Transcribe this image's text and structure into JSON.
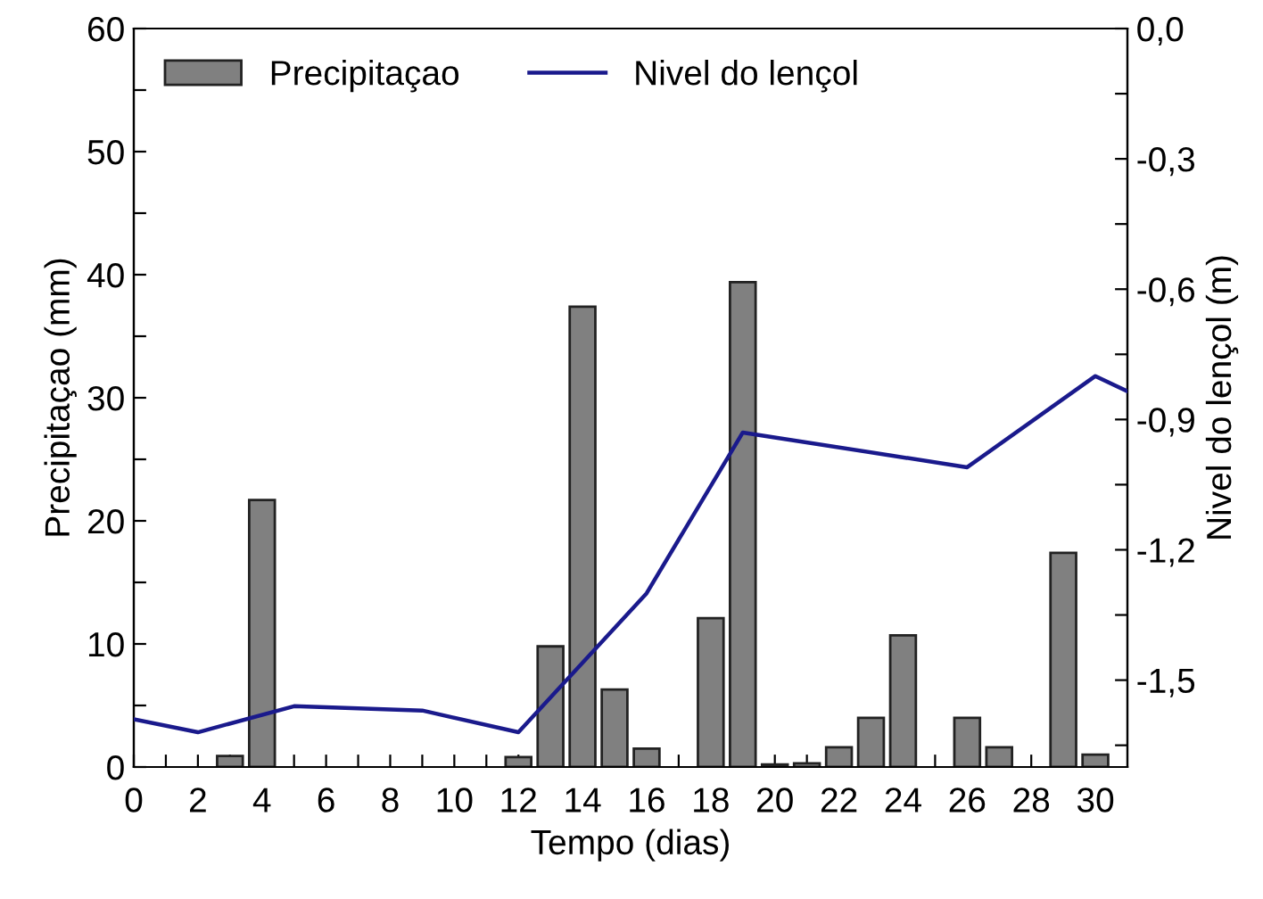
{
  "chart_data": {
    "type": "bar",
    "xlabel": "Tempo (dias)",
    "ylabel": "Precipitaçao (mm)",
    "y2label": "Nivel do lençol (m)",
    "xlim": [
      0,
      31
    ],
    "ylim": [
      0,
      60
    ],
    "y2lim": [
      -1.7,
      0
    ],
    "xticks": [
      0,
      {
        "value": 1,
        "label": null
      },
      2,
      {
        "value": 3,
        "label": null
      },
      4,
      {
        "value": 5,
        "label": null
      },
      6,
      {
        "value": 7,
        "label": null
      },
      8,
      {
        "value": 9,
        "label": null
      },
      10,
      {
        "value": 11,
        "label": null
      },
      12,
      {
        "value": 13,
        "label": null
      },
      14,
      {
        "value": 15,
        "label": null
      },
      16,
      {
        "value": 17,
        "label": null
      },
      18,
      {
        "value": 19,
        "label": null
      },
      20,
      {
        "value": 21,
        "label": null
      },
      22,
      {
        "value": 23,
        "label": null
      },
      24,
      {
        "value": 25,
        "label": null
      },
      26,
      {
        "value": 27,
        "label": null
      },
      28,
      {
        "value": 29,
        "label": null
      },
      30
    ],
    "yticks": [
      0,
      {
        "value": 5,
        "label": null
      },
      10,
      {
        "value": 15,
        "label": null
      },
      20,
      {
        "value": 25,
        "label": null
      },
      30,
      {
        "value": 35,
        "label": null
      },
      40,
      {
        "value": 45,
        "label": null
      },
      50,
      {
        "value": 55,
        "label": null
      },
      60
    ],
    "y2ticks": [
      {
        "value": 0,
        "label": "0,0"
      },
      {
        "value": -0.15,
        "label": null
      },
      {
        "value": -0.3,
        "label": "-0,3"
      },
      {
        "value": -0.45,
        "label": null
      },
      {
        "value": -0.6,
        "label": "-0,6"
      },
      {
        "value": -0.75,
        "label": null
      },
      {
        "value": -0.9,
        "label": "-0,9"
      },
      {
        "value": -1.05,
        "label": null
      },
      {
        "value": -1.2,
        "label": "-1,2"
      },
      {
        "value": -1.35,
        "label": null
      },
      {
        "value": -1.5,
        "label": "-1,5"
      },
      {
        "value": -1.65,
        "label": null
      }
    ],
    "legend": "top left",
    "grid": false,
    "series": [
      {
        "name": "Precipitaçao",
        "color": "#808080",
        "x": [
          3,
          4,
          12,
          13,
          14,
          15,
          16,
          18,
          19,
          20,
          21,
          22,
          23,
          24,
          26,
          27,
          29,
          30
        ],
        "values": [
          0.9,
          21.7,
          0.8,
          9.8,
          37.4,
          6.3,
          1.5,
          12.1,
          39.4,
          0.2,
          0.3,
          1.6,
          4.0,
          10.7,
          4.0,
          1.6,
          17.4,
          1.0
        ]
      },
      {
        "name": "Nivel do lençol",
        "type": "line",
        "axis": "y2",
        "color": "#1a1a8c",
        "x": [
          0,
          2,
          5,
          9,
          12,
          16,
          19,
          26,
          30,
          31
        ],
        "values": [
          -1.59,
          -1.62,
          -1.56,
          -1.57,
          -1.62,
          -1.3,
          -0.93,
          -1.01,
          -0.8,
          -0.835
        ]
      }
    ]
  }
}
